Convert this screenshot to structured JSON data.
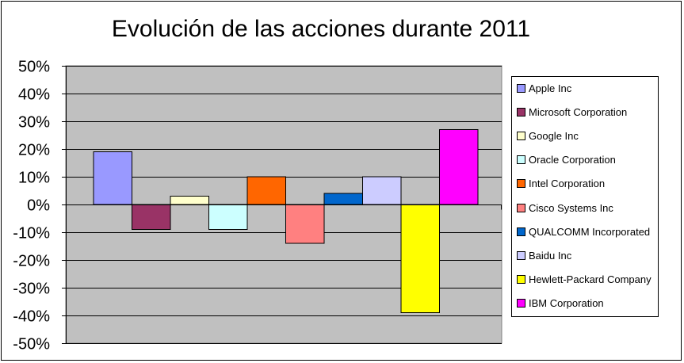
{
  "chart_data": {
    "type": "bar",
    "title": "Evolución de las acciones durante 2011",
    "xlabel": "",
    "ylabel": "",
    "ylim": [
      -50,
      50
    ],
    "yticks": [
      "50%",
      "40%",
      "30%",
      "20%",
      "10%",
      "0%",
      "-10%",
      "-20%",
      "-30%",
      "-40%",
      "-50%"
    ],
    "tick_values": [
      50,
      40,
      30,
      20,
      10,
      0,
      -10,
      -20,
      -30,
      -40,
      -50
    ],
    "grid": true,
    "legend_position": "right",
    "plot_background": "#c0c0c0",
    "series": [
      {
        "name": "Apple Inc",
        "value": 19,
        "color": "#9999ff"
      },
      {
        "name": "Microsoft Corporation",
        "value": -9,
        "color": "#993366"
      },
      {
        "name": "Google Inc",
        "value": 3,
        "color": "#ffffcc"
      },
      {
        "name": "Oracle Corporation",
        "value": -9,
        "color": "#ccffff"
      },
      {
        "name": "Intel Corporation",
        "value": 10,
        "color": "#ff6600"
      },
      {
        "name": "Cisco Systems Inc",
        "value": -14,
        "color": "#ff8080"
      },
      {
        "name": "QUALCOMM Incorporated",
        "value": 4,
        "color": "#0066cc"
      },
      {
        "name": "Baidu Inc",
        "value": 10,
        "color": "#ccccff"
      },
      {
        "name": "Hewlett-Packard Company",
        "value": -39,
        "color": "#ffff00"
      },
      {
        "name": "IBM Corporation",
        "value": 27,
        "color": "#ff00ff"
      }
    ]
  }
}
